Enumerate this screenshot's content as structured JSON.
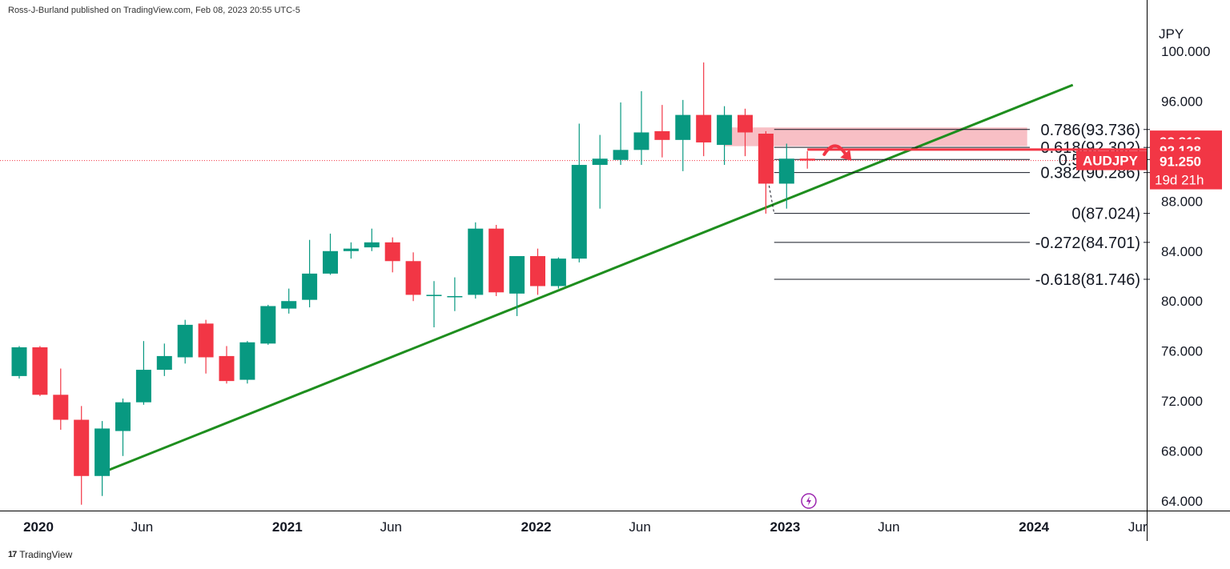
{
  "header": {
    "published_text": "Ross-J-Burland published on TradingView.com, Feb 08, 2023 20:55 UTC-5"
  },
  "footer": {
    "brand": "TradingView",
    "logo_glyph": "17"
  },
  "chart_data": {
    "type": "candlestick",
    "symbol": "AUDJPY",
    "currency": "JPY",
    "interval": "monthly",
    "y_range": [
      63.3,
      100.9
    ],
    "y_ticks": [
      "100.000",
      "96.000",
      "92.000",
      "88.000",
      "84.000",
      "80.000",
      "76.000",
      "72.000",
      "68.000",
      "64.000"
    ],
    "x_ticks": [
      "2020",
      "Jun",
      "2021",
      "Jun",
      "2022",
      "Jun",
      "2023",
      "Jun",
      "2024",
      "Jur"
    ],
    "x_tick_months": [
      0,
      5,
      12,
      17,
      24,
      29,
      36,
      41,
      48,
      53
    ],
    "candles": [
      {
        "m": 0,
        "o": 74.0,
        "h": 76.4,
        "l": 73.8,
        "c": 76.3
      },
      {
        "m": 1,
        "o": 76.3,
        "h": 76.4,
        "l": 72.4,
        "c": 72.5
      },
      {
        "m": 2,
        "o": 72.5,
        "h": 74.6,
        "l": 69.7,
        "c": 70.5
      },
      {
        "m": 3,
        "o": 70.5,
        "h": 71.6,
        "l": 63.7,
        "c": 66.0
      },
      {
        "m": 4,
        "o": 66.0,
        "h": 70.4,
        "l": 64.4,
        "c": 69.8
      },
      {
        "m": 5,
        "o": 69.6,
        "h": 72.2,
        "l": 67.6,
        "c": 71.9
      },
      {
        "m": 6,
        "o": 71.9,
        "h": 76.8,
        "l": 71.7,
        "c": 74.5
      },
      {
        "m": 7,
        "o": 74.5,
        "h": 76.6,
        "l": 74.0,
        "c": 75.6
      },
      {
        "m": 8,
        "o": 75.5,
        "h": 78.5,
        "l": 75.0,
        "c": 78.1
      },
      {
        "m": 9,
        "o": 78.2,
        "h": 78.5,
        "l": 74.2,
        "c": 75.5
      },
      {
        "m": 10,
        "o": 75.6,
        "h": 76.4,
        "l": 73.4,
        "c": 73.6
      },
      {
        "m": 11,
        "o": 73.7,
        "h": 76.8,
        "l": 73.4,
        "c": 76.7
      },
      {
        "m": 12,
        "o": 76.6,
        "h": 79.7,
        "l": 76.5,
        "c": 79.6
      },
      {
        "m": 13,
        "o": 79.4,
        "h": 81.0,
        "l": 79.0,
        "c": 80.0
      },
      {
        "m": 14,
        "o": 80.1,
        "h": 84.9,
        "l": 79.5,
        "c": 82.2
      },
      {
        "m": 15,
        "o": 82.2,
        "h": 85.4,
        "l": 82.1,
        "c": 84.0
      },
      {
        "m": 16,
        "o": 84.0,
        "h": 84.7,
        "l": 83.4,
        "c": 84.2
      },
      {
        "m": 17,
        "o": 84.3,
        "h": 85.8,
        "l": 84.0,
        "c": 84.7
      },
      {
        "m": 18,
        "o": 84.7,
        "h": 85.1,
        "l": 82.3,
        "c": 83.2
      },
      {
        "m": 19,
        "o": 83.2,
        "h": 83.9,
        "l": 80.0,
        "c": 80.5
      },
      {
        "m": 20,
        "o": 80.4,
        "h": 81.6,
        "l": 77.9,
        "c": 80.5
      },
      {
        "m": 21,
        "o": 80.4,
        "h": 81.9,
        "l": 79.2,
        "c": 80.4
      },
      {
        "m": 22,
        "o": 80.5,
        "h": 86.3,
        "l": 80.2,
        "c": 85.8
      },
      {
        "m": 23,
        "o": 85.8,
        "h": 86.1,
        "l": 80.4,
        "c": 80.7
      },
      {
        "m": 24,
        "o": 80.6,
        "h": 83.6,
        "l": 78.8,
        "c": 83.6
      },
      {
        "m": 25,
        "o": 83.6,
        "h": 84.2,
        "l": 80.5,
        "c": 81.2
      },
      {
        "m": 26,
        "o": 81.2,
        "h": 83.5,
        "l": 81.0,
        "c": 83.4
      },
      {
        "m": 27,
        "o": 83.4,
        "h": 94.2,
        "l": 83.1,
        "c": 90.9
      },
      {
        "m": 28,
        "o": 90.9,
        "h": 93.3,
        "l": 87.4,
        "c": 91.4
      },
      {
        "m": 29,
        "o": 91.3,
        "h": 95.9,
        "l": 90.9,
        "c": 92.1
      },
      {
        "m": 30,
        "o": 92.1,
        "h": 96.8,
        "l": 90.9,
        "c": 93.5
      },
      {
        "m": 31,
        "o": 93.6,
        "h": 95.7,
        "l": 91.5,
        "c": 92.9
      },
      {
        "m": 32,
        "o": 92.9,
        "h": 96.1,
        "l": 90.4,
        "c": 94.9
      },
      {
        "m": 33,
        "o": 94.9,
        "h": 99.1,
        "l": 91.6,
        "c": 92.7
      },
      {
        "m": 34,
        "o": 92.5,
        "h": 95.6,
        "l": 90.9,
        "c": 94.9
      },
      {
        "m": 35,
        "o": 94.9,
        "h": 95.4,
        "l": 91.6,
        "c": 93.5
      },
      {
        "m": 36,
        "o": 93.4,
        "h": 93.6,
        "l": 87.0,
        "c": 89.4
      },
      {
        "m": 37,
        "o": 89.4,
        "h": 92.6,
        "l": 87.4,
        "c": 91.4
      },
      {
        "m": 38,
        "o": 91.4,
        "h": 92.0,
        "l": 90.6,
        "c": 91.25
      }
    ],
    "trendline": {
      "from": {
        "m": 4.2,
        "price": 66.4
      },
      "to": {
        "m": 50.8,
        "price": 97.3
      },
      "color": "#1e8e1e"
    },
    "fibonacci": [
      {
        "label": "0.786(93.736)",
        "price": 93.736
      },
      {
        "label": "0.618(92.302)",
        "price": 92.302
      },
      {
        "label": "0.5(91.333)",
        "price": 91.333
      },
      {
        "label": "0.382(90.286)",
        "price": 90.286
      },
      {
        "label": "0(87.024)",
        "price": 87.024
      },
      {
        "label": "-0.272(84.701)",
        "price": 84.701
      },
      {
        "label": "-0.618(81.746)",
        "price": 81.746
      }
    ],
    "fib_start_month": 36.4,
    "zone": {
      "from_month": 34.0,
      "to_month": 48.6,
      "top": 93.9,
      "bottom": 92.4,
      "color": "#f28b95"
    },
    "resistance_line": {
      "price": 92.128,
      "from_month": 38.0,
      "color": "#f23645"
    },
    "price_labels": [
      {
        "text": "92.818",
        "price": 92.818,
        "color": "#f23645"
      },
      {
        "text": "92.128",
        "price": 92.128,
        "color": "#f23645"
      }
    ],
    "current": {
      "symbol": "AUDJPY",
      "price": "91.250",
      "countdown": "19d 21h",
      "value": 91.25,
      "color": "#f23645"
    },
    "colors": {
      "up": "#089981",
      "down": "#f23645",
      "grid_text": "#131722",
      "axis": "#000000"
    }
  }
}
